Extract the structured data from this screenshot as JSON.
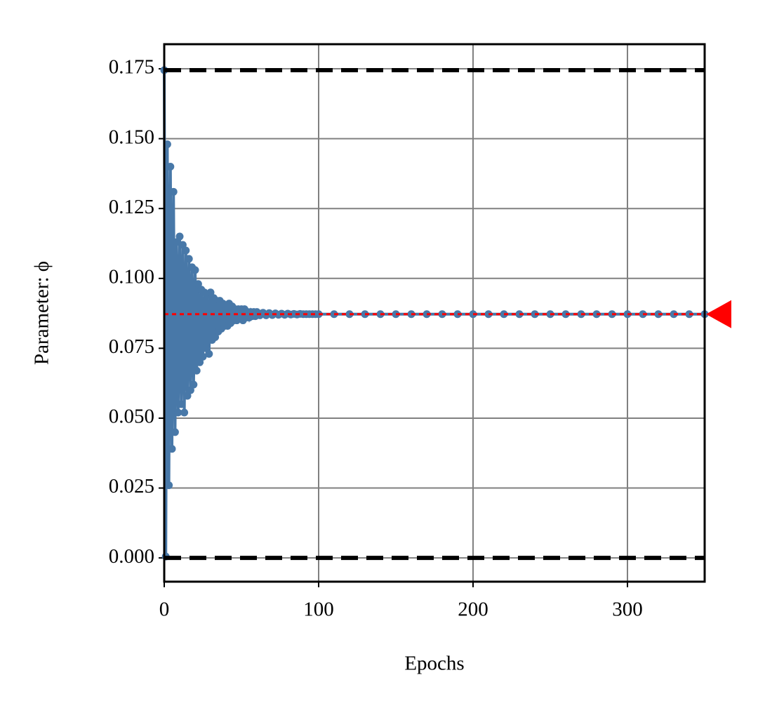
{
  "chart_data": {
    "type": "line",
    "xlabel": "Epochs",
    "ylabel": "Parameter: ϕ",
    "x": [
      0,
      1,
      2,
      3,
      4,
      5,
      6,
      7,
      8,
      9,
      10,
      11,
      12,
      13,
      14,
      15,
      16,
      17,
      18,
      19,
      20,
      21,
      22,
      23,
      24,
      25,
      26,
      27,
      28,
      29,
      30,
      31,
      32,
      33,
      34,
      35,
      36,
      37,
      38,
      39,
      40,
      41,
      42,
      43,
      44,
      45,
      46,
      47,
      48,
      49,
      50,
      51,
      52,
      53,
      54,
      55,
      56,
      57,
      58,
      59,
      60,
      62,
      64,
      66,
      68,
      70,
      72,
      74,
      76,
      78,
      80,
      82,
      84,
      86,
      88,
      90,
      92,
      94,
      96,
      98,
      100,
      110,
      120,
      130,
      140,
      150,
      160,
      170,
      180,
      190,
      200,
      210,
      220,
      230,
      240,
      250,
      260,
      270,
      280,
      290,
      300,
      310,
      320,
      330,
      340,
      350
    ],
    "values": [
      0.1745,
      0.0005,
      0.148,
      0.026,
      0.14,
      0.039,
      0.131,
      0.045,
      0.113,
      0.052,
      0.115,
      0.055,
      0.112,
      0.052,
      0.11,
      0.058,
      0.107,
      0.06,
      0.104,
      0.062,
      0.103,
      0.067,
      0.098,
      0.07,
      0.096,
      0.072,
      0.095,
      0.075,
      0.094,
      0.073,
      0.095,
      0.078,
      0.093,
      0.079,
      0.092,
      0.081,
      0.092,
      0.082,
      0.091,
      0.083,
      0.09,
      0.083,
      0.091,
      0.084,
      0.09,
      0.085,
      0.089,
      0.085,
      0.089,
      0.086,
      0.089,
      0.085,
      0.089,
      0.086,
      0.088,
      0.086,
      0.088,
      0.0865,
      0.088,
      0.0865,
      0.088,
      0.0868,
      0.0877,
      0.0868,
      0.0876,
      0.0869,
      0.0875,
      0.087,
      0.0874,
      0.087,
      0.0874,
      0.0871,
      0.0873,
      0.0871,
      0.0873,
      0.0872,
      0.0872,
      0.0872,
      0.0872,
      0.0872,
      0.0872,
      0.0872,
      0.0872,
      0.0872,
      0.0872,
      0.0872,
      0.0872,
      0.0872,
      0.0872,
      0.0872,
      0.0872,
      0.0872,
      0.0872,
      0.0872,
      0.0872,
      0.0872,
      0.0872,
      0.0872,
      0.0872,
      0.0872,
      0.0872,
      0.0872,
      0.0872,
      0.0872,
      0.0872,
      0.0872
    ],
    "color": "#4878a8",
    "reference_lines": [
      {
        "value": 0,
        "style": "dashed",
        "color": "#000000"
      },
      {
        "value": 0.1745,
        "style": "dashed",
        "color": "#000000"
      },
      {
        "value": 0.0872,
        "style": "dotted",
        "color": "#ff0000"
      }
    ],
    "target_marker_color": "#ff0000",
    "xlim": [
      0,
      350
    ],
    "xticks": [
      0,
      100,
      200,
      300
    ],
    "ylim": [
      -0.0085,
      0.1838
    ],
    "yticks": [
      {
        "value": 0,
        "label": "0.000"
      },
      0.025,
      {
        "value": 0.05,
        "label": "0.050"
      },
      0.075,
      {
        "value": 0.1,
        "label": "0.100"
      },
      0.125,
      {
        "value": 0.15,
        "label": "0.150"
      },
      0.175
    ],
    "grid": true
  }
}
